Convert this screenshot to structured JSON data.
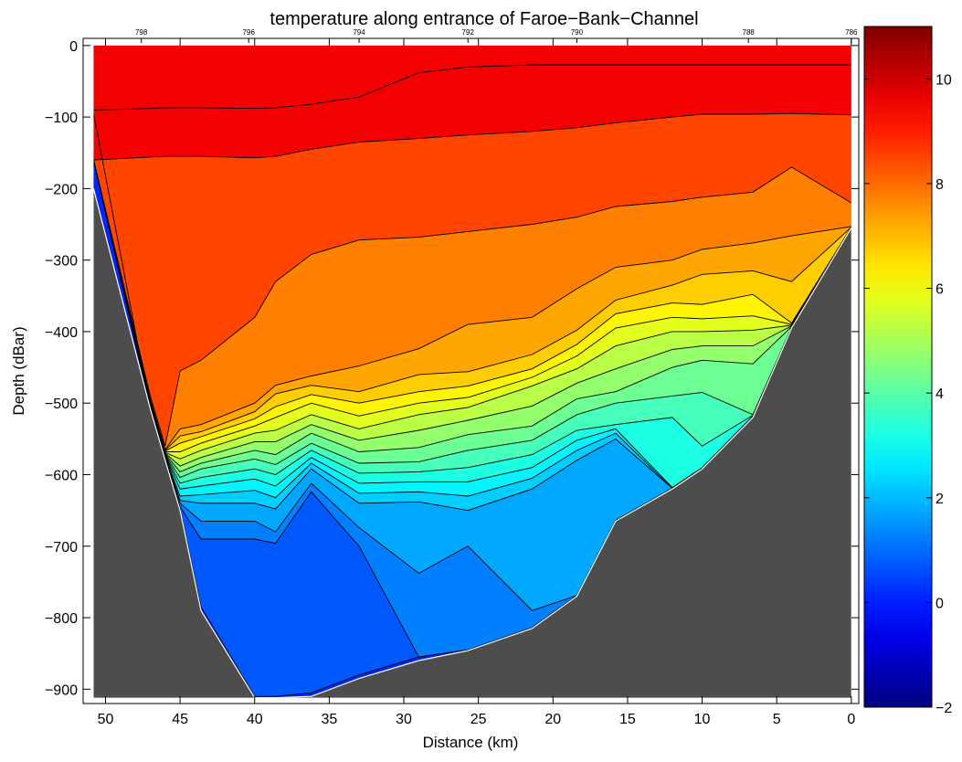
{
  "chart_data": {
    "type": "heatmap",
    "title": "temperature along entrance of Faroe−Bank−Channel",
    "xlabel": "Distance (km)",
    "ylabel": "Depth (dBar)",
    "xlim": [
      51.5,
      -0.5
    ],
    "ylim": [
      -920,
      10
    ],
    "x_ticks": [
      50,
      45,
      40,
      35,
      30,
      25,
      20,
      15,
      10,
      5,
      0
    ],
    "x_tick_labels": [
      "50",
      "45",
      "40",
      "35",
      "30",
      "25",
      "20",
      "15",
      "10",
      "5",
      "0"
    ],
    "y_ticks": [
      0,
      -100,
      -200,
      -300,
      -400,
      -500,
      -600,
      -700,
      -800,
      -900
    ],
    "y_tick_labels": [
      "0",
      "−100",
      "−200",
      "−300",
      "−400",
      "−500",
      "−600",
      "−700",
      "−800",
      "−900"
    ],
    "station_ticks": [
      {
        "x": 47.6,
        "label": "798"
      },
      {
        "x": 40.4,
        "label": "796"
      },
      {
        "x": 33.0,
        "label": "794"
      },
      {
        "x": 25.7,
        "label": "792"
      },
      {
        "x": 18.4,
        "label": "790"
      },
      {
        "x": 6.9,
        "label": "788"
      },
      {
        "x": 0.0,
        "label": "786"
      }
    ],
    "colorbar": {
      "range": [
        -2,
        11
      ],
      "ticks": [
        -2,
        0,
        2,
        4,
        6,
        8,
        10
      ],
      "tick_labels": [
        "−2",
        "0",
        "2",
        "4",
        "6",
        "8",
        "10"
      ]
    },
    "contour_levels": [
      0.5,
      1,
      1.5,
      2,
      2.5,
      3,
      3.5,
      4,
      4.5,
      5,
      5.5,
      6,
      6.5,
      7,
      7.5,
      8,
      9,
      10
    ],
    "profiles": [
      {
        "x": 50.8,
        "bottom": -200,
        "depths": [
          -95,
          -160,
          -160,
          -160,
          -160,
          -160,
          -160,
          -160,
          -160,
          -160,
          -160,
          -160,
          -160,
          -160,
          -160,
          -160,
          -160,
          -90
        ]
      },
      {
        "x": 47.0,
        "bottom": -508,
        "depths": [
          -509,
          -508,
          -507,
          -506,
          -505,
          -504,
          -503,
          -502,
          -501,
          -500,
          -499,
          -498,
          -497,
          -496,
          -495,
          -490,
          -156,
          -88
        ]
      },
      {
        "x": 46.0,
        "bottom": -580,
        "depths": [
          -579,
          -578,
          -577,
          -576,
          -575,
          -574,
          -573,
          -572,
          -571,
          -570,
          -569,
          -568,
          -567,
          -566,
          -565,
          -560,
          -155,
          -87
        ]
      },
      {
        "x": 45.0,
        "bottom": -650,
        "depths": [
          -648,
          -645,
          -640,
          -636,
          -630,
          -620,
          -612,
          -604,
          -596,
          -588,
          -578,
          -568,
          -556,
          -546,
          -536,
          -455,
          -155,
          -87
        ]
      },
      {
        "x": 43.6,
        "bottom": -790,
        "depths": [
          -785,
          -690,
          -665,
          -640,
          -628,
          -616,
          -604,
          -592,
          -584,
          -576,
          -566,
          -556,
          -547,
          -540,
          -530,
          -440,
          -155,
          -87
        ]
      },
      {
        "x": 40.0,
        "bottom": -912,
        "depths": [
          -910,
          -690,
          -665,
          -640,
          -622,
          -606,
          -592,
          -578,
          -566,
          -554,
          -542,
          -532,
          -522,
          -512,
          -500,
          -380,
          -157,
          -88
        ]
      },
      {
        "x": 38.6,
        "bottom": -912,
        "depths": [
          -910,
          -696,
          -680,
          -648,
          -632,
          -616,
          -600,
          -586,
          -572,
          -554,
          -538,
          -520,
          -505,
          -487,
          -475,
          -330,
          -155,
          -87
        ]
      },
      {
        "x": 36.2,
        "bottom": -910,
        "depths": [
          -905,
          -624,
          -612,
          -592,
          -584,
          -576,
          -566,
          -556,
          -542,
          -530,
          -516,
          -500,
          -488,
          -475,
          -462,
          -292,
          -145,
          -82
        ]
      },
      {
        "x": 33.0,
        "bottom": -885,
        "depths": [
          -880,
          -700,
          -674,
          -640,
          -626,
          -612,
          -598,
          -584,
          -568,
          -552,
          -536,
          -518,
          -500,
          -484,
          -448,
          -272,
          -135,
          -72
        ]
      },
      {
        "x": 29.0,
        "bottom": -860,
        "depths": [
          -855,
          -855,
          -738,
          -638,
          -624,
          -610,
          -596,
          -582,
          -562,
          -538,
          -516,
          -500,
          -484,
          -460,
          -424,
          -268,
          -130,
          -38
        ]
      },
      {
        "x": 25.7,
        "bottom": -846,
        "depths": [
          -845,
          -845,
          -700,
          -650,
          -630,
          -610,
          -590,
          -566,
          -544,
          -524,
          -506,
          -492,
          -476,
          -456,
          -390,
          -260,
          -125,
          -30
        ]
      },
      {
        "x": 21.4,
        "bottom": -815,
        "depths": [
          -814,
          -814,
          -790,
          -620,
          -605,
          -590,
          -572,
          -552,
          -532,
          -504,
          -476,
          -464,
          -452,
          -432,
          -380,
          -250,
          -120,
          -27
        ]
      },
      {
        "x": 18.4,
        "bottom": -770,
        "depths": [
          -769,
          -769,
          -769,
          -580,
          -566,
          -552,
          -538,
          -516,
          -494,
          -472,
          -452,
          -434,
          -418,
          -398,
          -340,
          -240,
          -115,
          -27
        ]
      },
      {
        "x": 15.8,
        "bottom": -665,
        "depths": [
          -664,
          -664,
          -664,
          -550,
          -542,
          -536,
          -530,
          -500,
          -484,
          -452,
          -420,
          -395,
          -375,
          -356,
          -310,
          -225,
          -108,
          -27
        ]
      },
      {
        "x": 12.0,
        "bottom": -620,
        "depths": [
          -619,
          -619,
          -619,
          -619,
          -619,
          -618,
          -520,
          -490,
          -450,
          -425,
          -400,
          -380,
          -360,
          -335,
          -300,
          -218,
          -100,
          -27
        ]
      },
      {
        "x": 10.0,
        "bottom": -592,
        "depths": [
          -591,
          -591,
          -591,
          -591,
          -591,
          -590,
          -560,
          -485,
          -440,
          -420,
          -400,
          -382,
          -362,
          -320,
          -285,
          -212,
          -96,
          -27
        ]
      },
      {
        "x": 6.6,
        "bottom": -520,
        "depths": [
          -519,
          -519,
          -519,
          -519,
          -519,
          -518,
          -517,
          -516,
          -445,
          -420,
          -398,
          -378,
          -348,
          -315,
          -276,
          -205,
          -96,
          -27
        ]
      },
      {
        "x": 4.0,
        "bottom": -395,
        "depths": [
          -394,
          -394,
          -394,
          -394,
          -394,
          -394,
          -394,
          -394,
          -393,
          -392,
          -391,
          -390,
          -388,
          -330,
          -266,
          -170,
          -95,
          -27
        ]
      },
      {
        "x": 0.0,
        "bottom": -255,
        "depths": [
          -254,
          -254,
          -254,
          -254,
          -254,
          -254,
          -254,
          -254,
          -254,
          -254,
          -254,
          -254,
          -254,
          -254,
          -253,
          -220,
          -97,
          -27
        ]
      }
    ]
  }
}
